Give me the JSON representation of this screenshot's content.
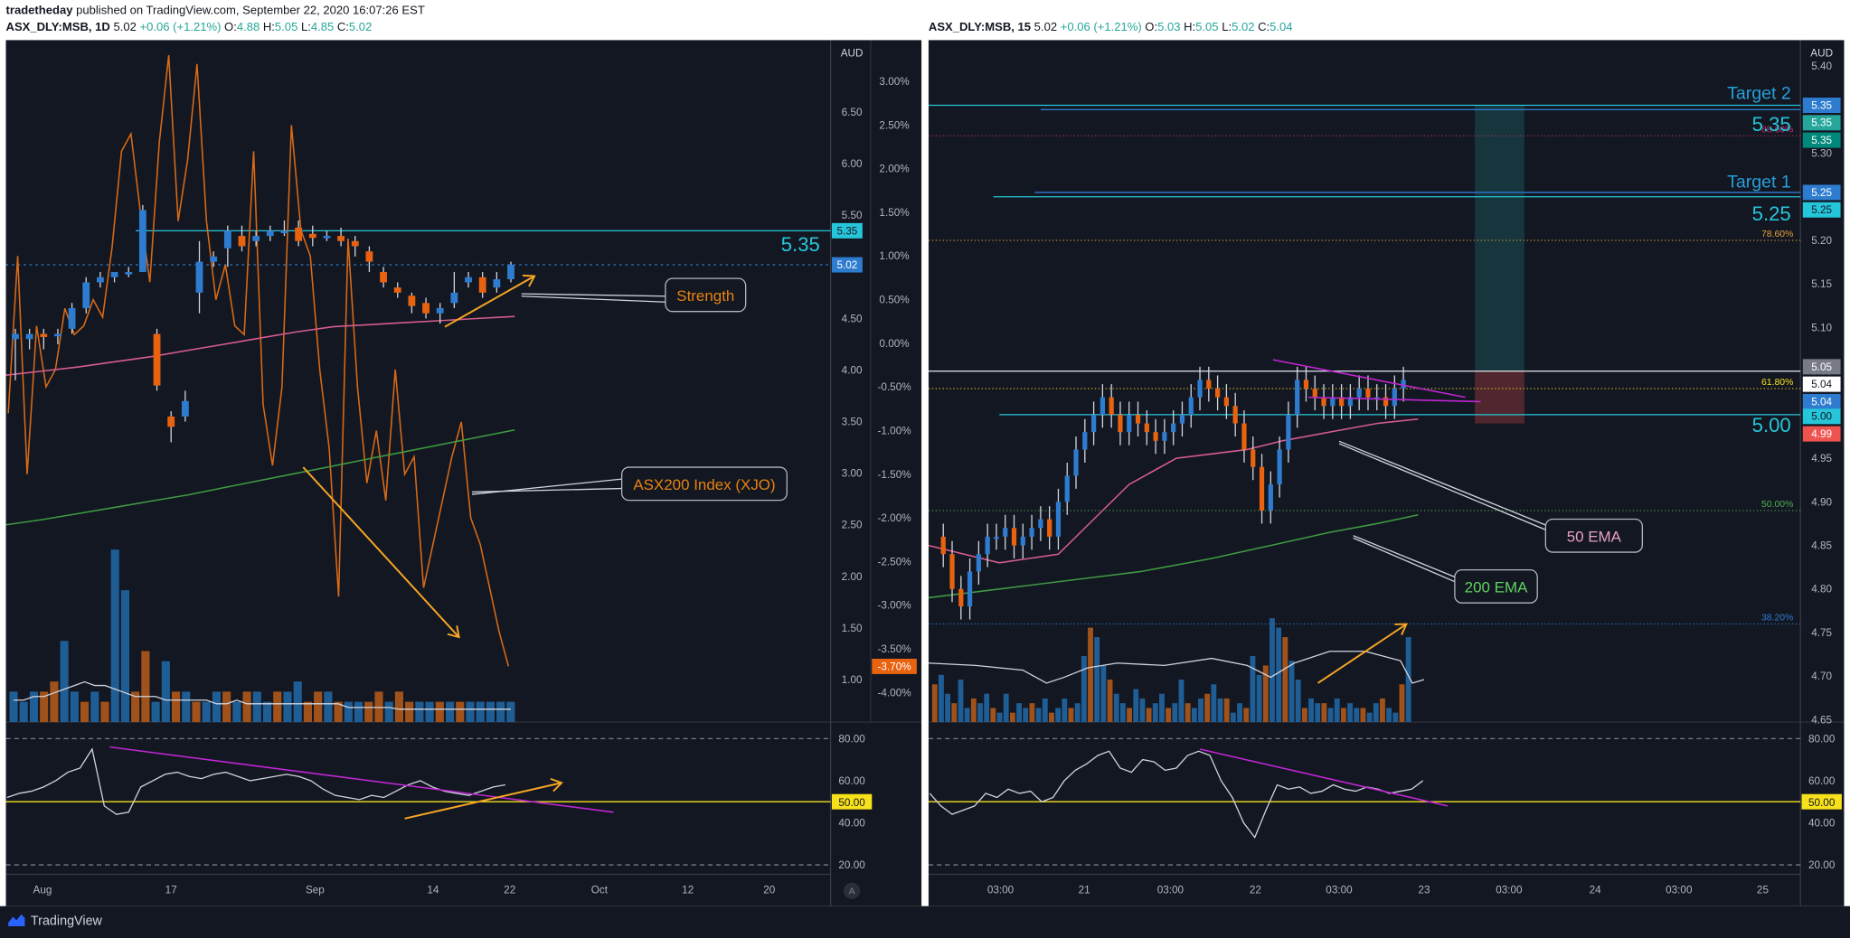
{
  "header": {
    "author": "tradetheday",
    "published": "published on TradingView.com, September 22, 2020 16:07:26 EST",
    "left_symbol": "ASX_DLY:MSB, 1D",
    "left_price": "5.02",
    "left_change": "+0.06 (+1.21%)",
    "left_o": "4.88",
    "left_h": "5.05",
    "left_l": "4.85",
    "left_c": "5.02",
    "right_symbol": "ASX_DLY:MSB, 15",
    "right_price": "5.02",
    "right_change": "+0.06 (+1.21%)",
    "right_o": "5.03",
    "right_h": "5.05",
    "right_l": "5.02",
    "right_c": "5.04"
  },
  "footer": {
    "brand": "TradingView"
  },
  "colors": {
    "background": "#131722",
    "up": "#2e7ccf",
    "down": "#e8620f",
    "accent": "#26c6da",
    "ema50": "#d65c8f",
    "ema200": "#3f9a41",
    "xjo": "#e8620f",
    "arrow": "#f5a623",
    "rsi_mid": "#f7e11b"
  },
  "chart_data": [
    {
      "id": "daily",
      "type": "candlestick",
      "currency": "AUD",
      "right_axis_ticks": [
        "6.50",
        "6.00",
        "5.50",
        "5.00",
        "4.50",
        "4.00",
        "3.50",
        "3.00",
        "2.50",
        "2.00",
        "1.50",
        "1.00"
      ],
      "pct_axis_ticks": [
        "3.00%",
        "2.50%",
        "2.00%",
        "1.50%",
        "1.00%",
        "0.50%",
        "0.00%",
        "-0.50%",
        "-1.00%",
        "-1.50%",
        "-2.00%",
        "-2.50%",
        "-3.00%",
        "-3.50%",
        "-4.00%"
      ],
      "x_ticks": [
        "Aug",
        "17",
        "Sep",
        "14",
        "22",
        "Oct",
        "12",
        "20"
      ],
      "ylim": [
        0.4,
        6.9
      ],
      "candles": [
        [
          4.3,
          4.35,
          3.9,
          4.4
        ],
        [
          4.3,
          4.35,
          4.2,
          4.4
        ],
        [
          4.35,
          4.32,
          4.2,
          4.4
        ],
        [
          4.35,
          4.35,
          4.25,
          4.4
        ],
        [
          4.4,
          4.6,
          4.35,
          4.65
        ],
        [
          4.6,
          4.85,
          4.55,
          4.9
        ],
        [
          4.85,
          4.9,
          4.8,
          4.95
        ],
        [
          4.9,
          4.95,
          4.85,
          4.95
        ],
        [
          4.95,
          4.95,
          4.9,
          5.0
        ],
        [
          4.95,
          5.55,
          4.95,
          5.6
        ],
        [
          4.35,
          3.85,
          3.8,
          4.4
        ],
        [
          3.55,
          3.45,
          3.3,
          3.6
        ],
        [
          3.55,
          3.7,
          3.5,
          3.8
        ],
        [
          4.75,
          5.05,
          4.55,
          5.25
        ],
        [
          5.05,
          5.1,
          5.0,
          5.15
        ],
        [
          5.18,
          5.35,
          5.0,
          5.4
        ],
        [
          5.3,
          5.2,
          5.15,
          5.4
        ],
        [
          5.25,
          5.3,
          5.2,
          5.35
        ],
        [
          5.3,
          5.35,
          5.25,
          5.4
        ],
        [
          5.35,
          5.35,
          5.3,
          5.45
        ],
        [
          5.38,
          5.25,
          5.2,
          5.45
        ],
        [
          5.32,
          5.28,
          5.2,
          5.4
        ],
        [
          5.28,
          5.3,
          5.25,
          5.35
        ],
        [
          5.3,
          5.25,
          5.2,
          5.38
        ],
        [
          5.25,
          5.2,
          5.1,
          5.3
        ],
        [
          5.15,
          5.05,
          4.95,
          5.2
        ],
        [
          4.95,
          4.85,
          4.8,
          5.0
        ],
        [
          4.8,
          4.75,
          4.7,
          4.85
        ],
        [
          4.72,
          4.62,
          4.55,
          4.75
        ],
        [
          4.65,
          4.55,
          4.5,
          4.7
        ],
        [
          4.55,
          4.6,
          4.45,
          4.65
        ],
        [
          4.65,
          4.75,
          4.6,
          4.95
        ],
        [
          4.85,
          4.9,
          4.8,
          4.95
        ],
        [
          4.9,
          4.75,
          4.7,
          4.95
        ],
        [
          4.8,
          4.88,
          4.75,
          4.95
        ],
        [
          4.88,
          5.02,
          4.85,
          5.05
        ]
      ],
      "ema50": [
        3.95,
        3.99,
        4.03,
        4.08,
        4.13,
        4.19,
        4.25,
        4.31,
        4.37,
        4.42,
        4.44,
        4.46,
        4.48,
        4.5,
        4.52
      ],
      "ema200": [
        2.5,
        2.55,
        2.61,
        2.67,
        2.73,
        2.79,
        2.86,
        2.93,
        3.0,
        3.07,
        3.14,
        3.21,
        3.28,
        3.35,
        3.42
      ],
      "xjo_pct": [
        -0.8,
        1.0,
        -1.5,
        0.2,
        -0.5,
        -0.3,
        0.4,
        0.1,
        0.2,
        0.5,
        0.3,
        1.1,
        2.2,
        2.4,
        1.5,
        0.7,
        2.3,
        3.3,
        1.4,
        2.1,
        3.2,
        1.4,
        0.5,
        0.9,
        0.2,
        0.1,
        2.2,
        -0.7,
        -1.4,
        -0.5,
        2.5,
        1.3,
        1.0,
        -0.3,
        -1.2,
        -2.9,
        1.2,
        -0.5,
        -1.6,
        -1.0,
        -1.8,
        -0.3,
        -1.5,
        -1.3,
        -2.8,
        -2.3,
        -1.8,
        -1.3,
        -0.9,
        -2.0,
        -2.3,
        -2.8,
        -3.3,
        -3.7
      ],
      "volume": [
        6,
        6,
        7,
        7,
        8,
        9,
        10,
        11,
        10,
        10,
        9,
        8,
        7,
        7,
        7,
        6,
        6,
        6,
        6,
        6,
        5,
        5,
        6,
        5,
        5,
        5,
        5,
        5,
        5,
        5,
        5,
        5,
        5,
        4,
        4,
        4,
        4,
        4,
        3.5,
        3.5,
        3.5,
        3.5,
        3.5,
        3.5,
        3.5,
        3.5,
        3.5,
        3.5,
        3.5,
        3.5
      ],
      "volume_colors": [
        "u",
        "u",
        "u",
        "d",
        "d",
        "u",
        "u",
        "d",
        "u",
        "d",
        "u",
        "u",
        "d",
        "d",
        "u",
        "u",
        "d",
        "u",
        "d",
        "u",
        "u",
        "d",
        "u",
        "d",
        "u",
        "u",
        "d",
        "u",
        "u",
        "d",
        "d",
        "u",
        "d",
        "u",
        "u",
        "d",
        "d",
        "u",
        "d",
        "d",
        "u",
        "u",
        "d",
        "u",
        "d",
        "u",
        "u",
        "u",
        "u",
        "u"
      ],
      "volume_bars": [
        3,
        2,
        3,
        3,
        4,
        8,
        3,
        2,
        3,
        2,
        17,
        13,
        3,
        7,
        2,
        6,
        3,
        3,
        2,
        2,
        3,
        3,
        2,
        3,
        3,
        2,
        3,
        3,
        4,
        2,
        3,
        3,
        2,
        2,
        2,
        2,
        3,
        2,
        3,
        2,
        2,
        2,
        2,
        2,
        2,
        2,
        2,
        2,
        2,
        2
      ],
      "price_labels": {
        "target": "5.35",
        "last": "5.02",
        "xjo_last": "-3.70%"
      },
      "levels": [
        {
          "value": 5.35,
          "label": "5.35"
        }
      ],
      "annotations": [
        "Strength",
        "ASX200 Index (XJO)"
      ],
      "rsi": {
        "ticks": [
          "80.00",
          "60.00",
          "40.00",
          "20.00"
        ],
        "mid_label": "50.00",
        "values": [
          52,
          54,
          55,
          57,
          60,
          64,
          66,
          75,
          48,
          44,
          45,
          57,
          60,
          63,
          64,
          62,
          61,
          63,
          64,
          62,
          60,
          61,
          62,
          63,
          62,
          60,
          56,
          53,
          52,
          51,
          53,
          52,
          55,
          58,
          60,
          57,
          55,
          54,
          53,
          55,
          57,
          58
        ]
      }
    },
    {
      "id": "intraday",
      "type": "candlestick",
      "currency": "AUD",
      "right_axis_ticks": [
        "5.40",
        "5.35",
        "5.30",
        "5.25",
        "5.20",
        "5.15",
        "5.10",
        "5.05",
        "5.00",
        "4.95",
        "4.90",
        "4.85",
        "4.80",
        "4.75",
        "4.70",
        "4.65"
      ],
      "x_ticks": [
        "03:00",
        "21",
        "03:00",
        "22",
        "03:00",
        "23",
        "03:00",
        "24",
        "03:00",
        "25"
      ],
      "ylim": [
        4.64,
        5.42
      ],
      "price_labels": {
        "t2": "5.35",
        "t1": "5.25",
        "last": "5.04",
        "stop_label": "5.05",
        "support": "5.00",
        "low": "4.99"
      },
      "targets": [
        {
          "label": "Target 2",
          "value": "5.35"
        },
        {
          "label": "Target 1",
          "value": "5.25"
        }
      ],
      "support_label": "5.00",
      "fib": [
        {
          "label": "88.60%",
          "value": 5.32
        },
        {
          "label": "78.60%",
          "value": 5.2
        },
        {
          "label": "61.80%",
          "value": 5.03
        },
        {
          "label": "50.00%",
          "value": 4.89
        },
        {
          "label": "38.20%",
          "value": 4.76
        }
      ],
      "annotations": [
        "50 EMA",
        "200 EMA"
      ],
      "rsi": {
        "ticks": [
          "80.00",
          "60.00",
          "40.00",
          "20.00"
        ],
        "mid_label": "50.00",
        "values": [
          54,
          48,
          44,
          46,
          48,
          54,
          52,
          56,
          54,
          55,
          50,
          52,
          60,
          65,
          68,
          72,
          74,
          66,
          64,
          70,
          69,
          65,
          66,
          72,
          74,
          72,
          60,
          52,
          40,
          33,
          46,
          58,
          56,
          57,
          54,
          55,
          58,
          56,
          55,
          57,
          56,
          54,
          55,
          56,
          60
        ]
      }
    }
  ]
}
